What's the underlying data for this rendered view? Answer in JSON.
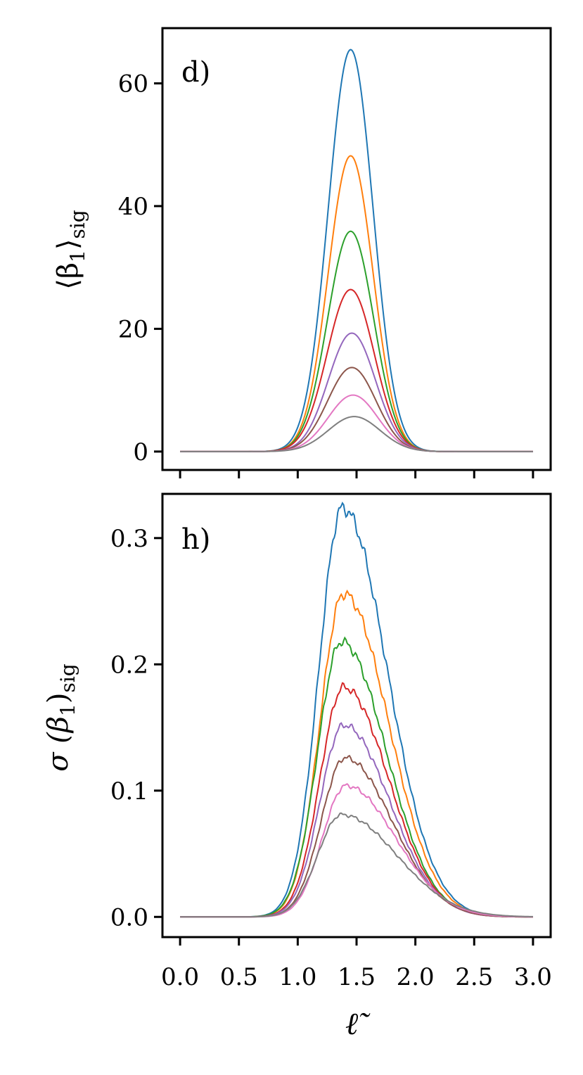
{
  "chart_data": [
    {
      "type": "line",
      "panel_label": "d)",
      "ylabel": "⟨β1⟩sig",
      "ylabel_main": "⟨β",
      "ylabel_sub1": "1",
      "ylabel_close": "⟩",
      "ylabel_sub2": "sig",
      "xlabel": "",
      "xlim": [
        -0.15,
        3.15
      ],
      "ylim": [
        -3,
        69
      ],
      "yticks": [
        0,
        20,
        40,
        60
      ],
      "ytick_labels": [
        "0",
        "20",
        "40",
        "60"
      ],
      "xticks": [
        0.0,
        0.5,
        1.0,
        1.5,
        2.0,
        2.5,
        3.0
      ],
      "x_range": [
        0,
        3
      ],
      "series": [
        {
          "name": "s1",
          "color": "#1f77b4",
          "peak": 65.5,
          "center": 1.45,
          "sigma": 0.19
        },
        {
          "name": "s2",
          "color": "#ff7f0e",
          "peak": 48.2,
          "center": 1.45,
          "sigma": 0.19
        },
        {
          "name": "s3",
          "color": "#2ca02c",
          "peak": 35.9,
          "center": 1.45,
          "sigma": 0.195
        },
        {
          "name": "s4",
          "color": "#d62728",
          "peak": 26.4,
          "center": 1.45,
          "sigma": 0.2
        },
        {
          "name": "s5",
          "color": "#9467bd",
          "peak": 19.3,
          "center": 1.46,
          "sigma": 0.2
        },
        {
          "name": "s6",
          "color": "#8c564b",
          "peak": 13.7,
          "center": 1.46,
          "sigma": 0.205
        },
        {
          "name": "s7",
          "color": "#e377c2",
          "peak": 9.2,
          "center": 1.47,
          "sigma": 0.21
        },
        {
          "name": "s8",
          "color": "#7f7f7f",
          "peak": 5.7,
          "center": 1.48,
          "sigma": 0.22
        }
      ]
    },
    {
      "type": "line",
      "panel_label": "h)",
      "ylabel": "σ(β1)sig",
      "ylabel_main": "σ (β",
      "ylabel_sub1": "1",
      "ylabel_close": ")",
      "ylabel_sub2": "sig",
      "xlabel": "ℓ̃",
      "xlim": [
        -0.15,
        3.15
      ],
      "ylim": [
        -0.016,
        0.335
      ],
      "yticks": [
        0.0,
        0.1,
        0.2,
        0.3
      ],
      "ytick_labels": [
        "0.0",
        "0.1",
        "0.2",
        "0.3"
      ],
      "xticks": [
        0.0,
        0.5,
        1.0,
        1.5,
        2.0,
        2.5,
        3.0
      ],
      "xtick_labels": [
        "0.0",
        "0.5",
        "1.0",
        "1.5",
        "2.0",
        "2.5",
        "3.0"
      ],
      "x_range": [
        0,
        3
      ],
      "series": [
        {
          "name": "s1",
          "color": "#1f77b4",
          "peak": 0.324,
          "center": 1.38,
          "sigma_left": 0.2,
          "sigma_right": 0.38
        },
        {
          "name": "s2",
          "color": "#ff7f0e",
          "peak": 0.256,
          "center": 1.39,
          "sigma_left": 0.2,
          "sigma_right": 0.38
        },
        {
          "name": "s3",
          "color": "#2ca02c",
          "peak": 0.218,
          "center": 1.37,
          "sigma_left": 0.2,
          "sigma_right": 0.38
        },
        {
          "name": "s4",
          "color": "#d62728",
          "peak": 0.182,
          "center": 1.39,
          "sigma_left": 0.2,
          "sigma_right": 0.38
        },
        {
          "name": "s5",
          "color": "#9467bd",
          "peak": 0.152,
          "center": 1.39,
          "sigma_left": 0.2,
          "sigma_right": 0.39
        },
        {
          "name": "s6",
          "color": "#8c564b",
          "peak": 0.126,
          "center": 1.4,
          "sigma_left": 0.2,
          "sigma_right": 0.4
        },
        {
          "name": "s7",
          "color": "#e377c2",
          "peak": 0.104,
          "center": 1.41,
          "sigma_left": 0.2,
          "sigma_right": 0.42
        },
        {
          "name": "s8",
          "color": "#7f7f7f",
          "peak": 0.081,
          "center": 1.37,
          "sigma_left": 0.2,
          "sigma_right": 0.47
        }
      ]
    }
  ]
}
